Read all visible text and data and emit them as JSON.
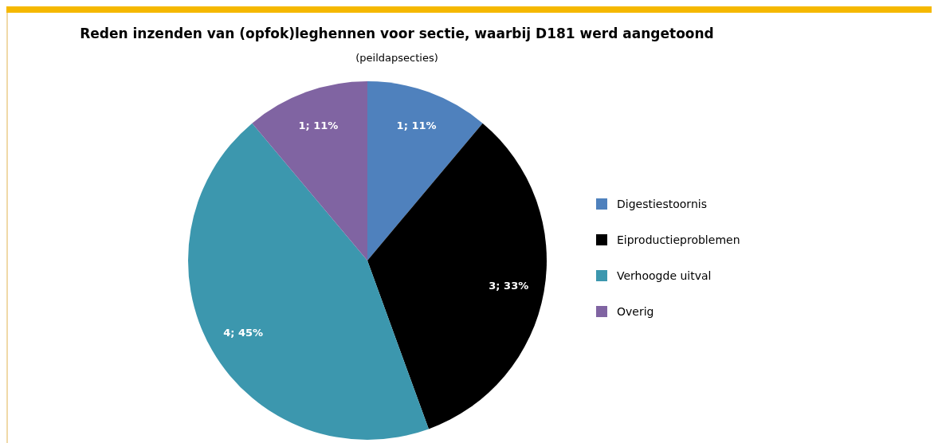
{
  "chart_data": {
    "type": "pie",
    "title": "Reden inzenden van (opfok)leghennen voor sectie, waarbij D181 werd aangetoond",
    "subtitle": "(peildapsecties)",
    "categories": [
      "Digestiestoornis",
      "Eiproductieproblemen",
      "Verhoogde uitval",
      "Overig"
    ],
    "values": [
      1,
      3,
      4,
      1
    ],
    "colors": [
      "#4f81bd",
      "#000000",
      "#3c97ae",
      "#8064a2"
    ],
    "value_labels": [
      "1; 11%",
      "3; 33%",
      "4; 45%",
      "1; 11%"
    ],
    "legend": "right"
  }
}
